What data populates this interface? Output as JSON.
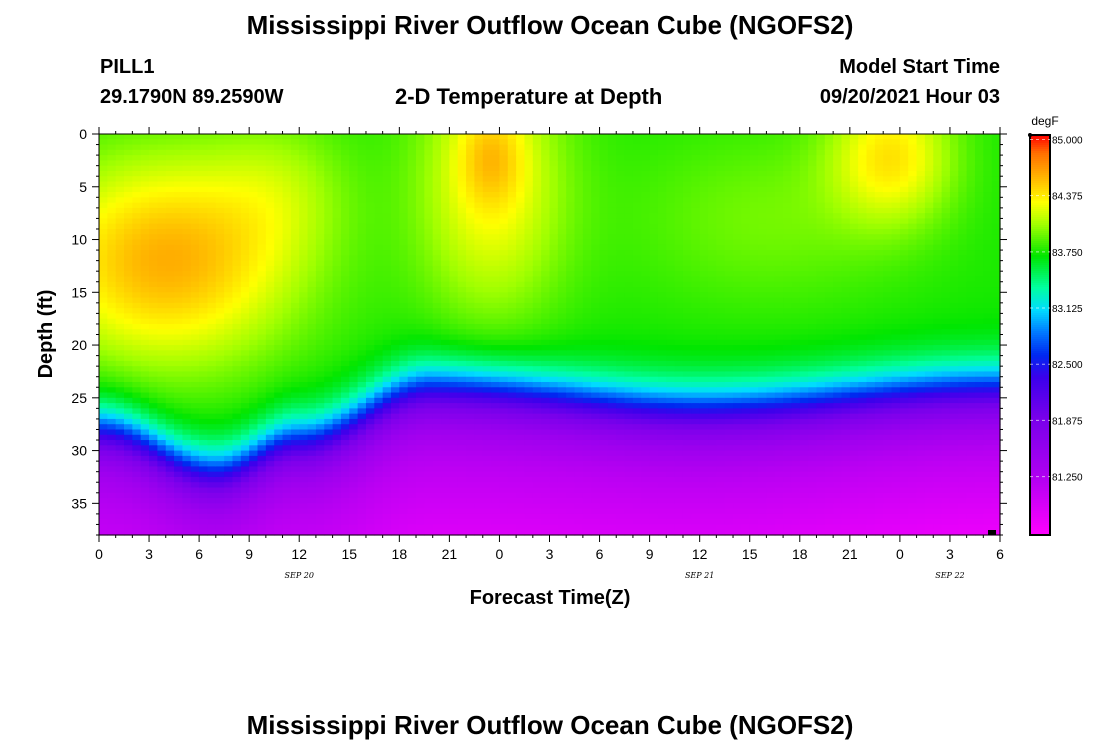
{
  "header": {
    "title": "Mississippi River Outflow Ocean Cube (NGOFS2)",
    "station": "PILL1",
    "coords": "29.1790N  89.2590W",
    "plot_title": "2-D Temperature at Depth",
    "model_start_label": "Model Start Time",
    "model_start_value": "09/20/2021 Hour 03"
  },
  "footer": {
    "title": "Mississippi River Outflow Ocean Cube (NGOFS2)"
  },
  "chart_data": {
    "type": "heatmap",
    "xlabel": "Forecast Time(Z)",
    "ylabel": "Depth (ft)",
    "x_ticks": [
      "0",
      "3",
      "6",
      "9",
      "12",
      "15",
      "18",
      "21",
      "0",
      "3",
      "6",
      "9",
      "12",
      "15",
      "18",
      "21",
      "0",
      "3",
      "6"
    ],
    "date_labels": [
      {
        "text": "SEP 20",
        "hour": 12
      },
      {
        "text": "SEP 21",
        "hour": 36
      },
      {
        "text": "SEP 22",
        "hour": 51
      }
    ],
    "xlim_hours": [
      0,
      54
    ],
    "y_ticks": [
      0,
      5,
      10,
      15,
      20,
      25,
      30,
      35
    ],
    "ylim": [
      0,
      38
    ],
    "y_inverted": true,
    "colorbar": {
      "unit": "degF",
      "ticks": [
        "85.000",
        "84.375",
        "83.750",
        "83.125",
        "82.500",
        "81.875",
        "81.250"
      ],
      "range": [
        80.6,
        85.05
      ]
    },
    "features": {
      "thermocline_depth_ft": [
        {
          "hour": 0,
          "depth": 28
        },
        {
          "hour": 7,
          "depth": 32
        },
        {
          "hour": 12,
          "depth": 29
        },
        {
          "hour": 20,
          "depth": 24
        },
        {
          "hour": 36,
          "depth": 26
        },
        {
          "hour": 54,
          "depth": 24
        }
      ],
      "surface_warm_cores": [
        {
          "hour_center": 23.5,
          "depth_center": 2,
          "peak_degF": 85.0
        },
        {
          "hour_center": 3,
          "depth_center": 13,
          "peak_degF": 84.6
        },
        {
          "hour_center": 47.5,
          "depth_center": 2,
          "peak_degF": 84.5
        }
      ],
      "bottom_min_degF": 80.7
    }
  }
}
